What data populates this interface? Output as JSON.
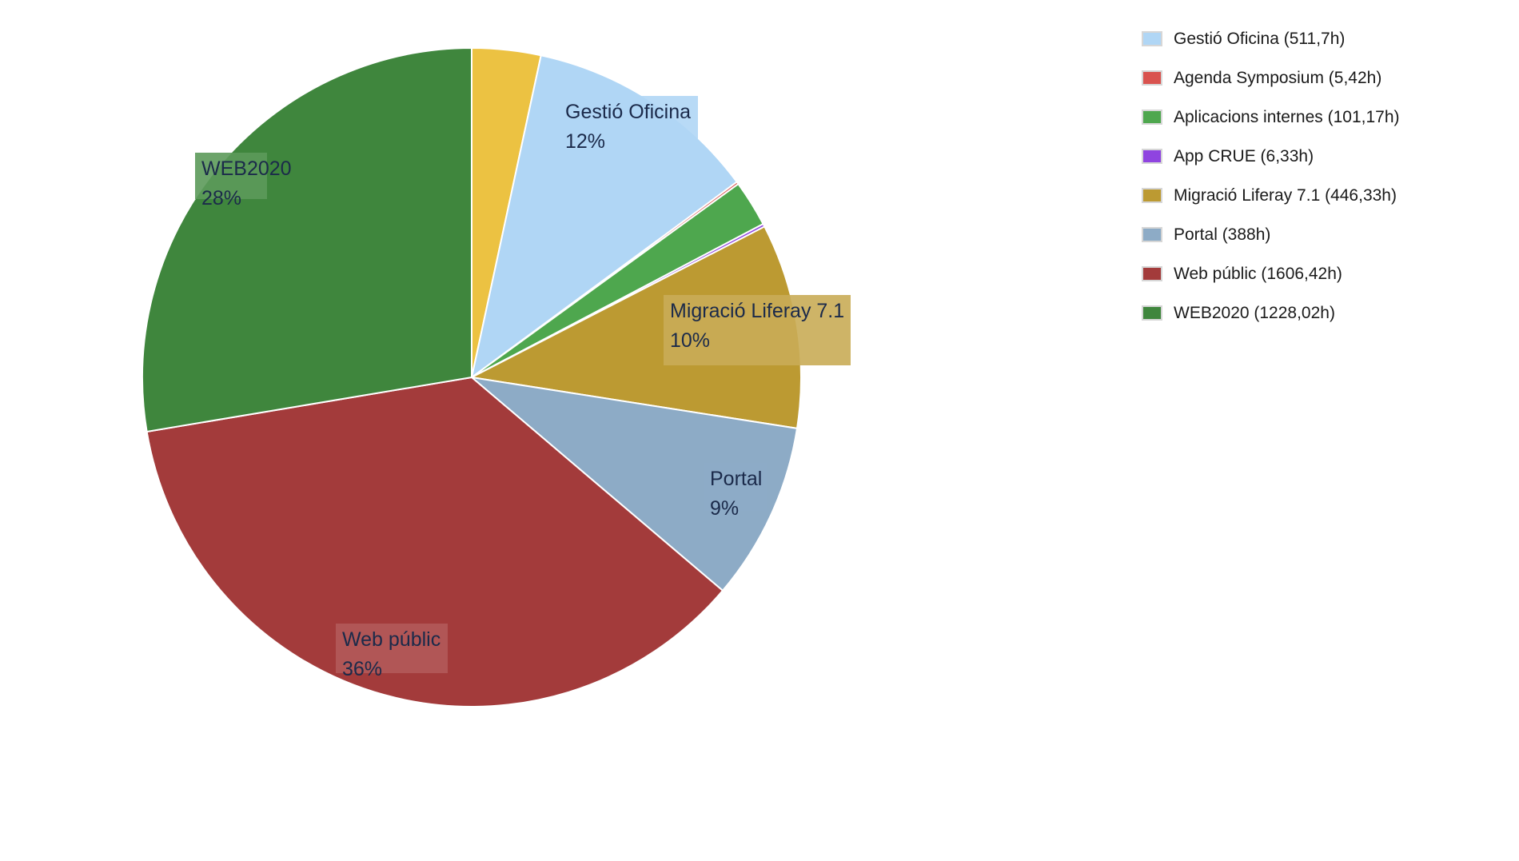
{
  "chart_data": {
    "type": "pie",
    "title": "",
    "slices": [
      {
        "name": "Gestió Oficina (511,7h)",
        "value": 511.7,
        "color": "#b0d6f5",
        "label": "Gestió Oficina",
        "percent_label": "12%"
      },
      {
        "name": "Agenda Symposium (5,42h)",
        "value": 5.42,
        "color": "#d9534f",
        "label": "",
        "percent_label": ""
      },
      {
        "name": "Aplicacions internes (101,17h)",
        "value": 101.17,
        "color": "#4ea74e",
        "label": "",
        "percent_label": ""
      },
      {
        "name": "App CRUE (6,33h)",
        "value": 6.33,
        "color": "#8f44e0",
        "label": "",
        "percent_label": ""
      },
      {
        "name": "Migració Liferay 7.1 (446,33h)",
        "value": 446.33,
        "color": "#bc9a32",
        "label": "Migració Liferay 7.1",
        "percent_label": "10%"
      },
      {
        "name": "Portal (388h)",
        "value": 388,
        "color": "#8dabc6",
        "label": "Portal",
        "percent_label": "9%"
      },
      {
        "name": "Web públic (1606,42h)",
        "value": 1606.42,
        "color": "#a33b3b",
        "label": "Web públic",
        "percent_label": "36%"
      },
      {
        "name": "WEB2020 (1228,02h)",
        "value": 1228.02,
        "color": "#3f863d",
        "label": "WEB2020",
        "percent_label": "28%"
      }
    ],
    "unlabeled_slice": {
      "value": 150,
      "color": "#ecc242"
    },
    "legend_position": "top-right",
    "legend": [
      "Gestió Oficina (511,7h)",
      "Agenda Symposium (5,42h)",
      "Aplicacions internes (101,17h)",
      "App CRUE (6,33h)",
      "Migració Liferay 7.1 (446,33h)",
      "Portal (388h)",
      "Web públic (1606,42h)",
      "WEB2020 (1228,02h)"
    ]
  }
}
